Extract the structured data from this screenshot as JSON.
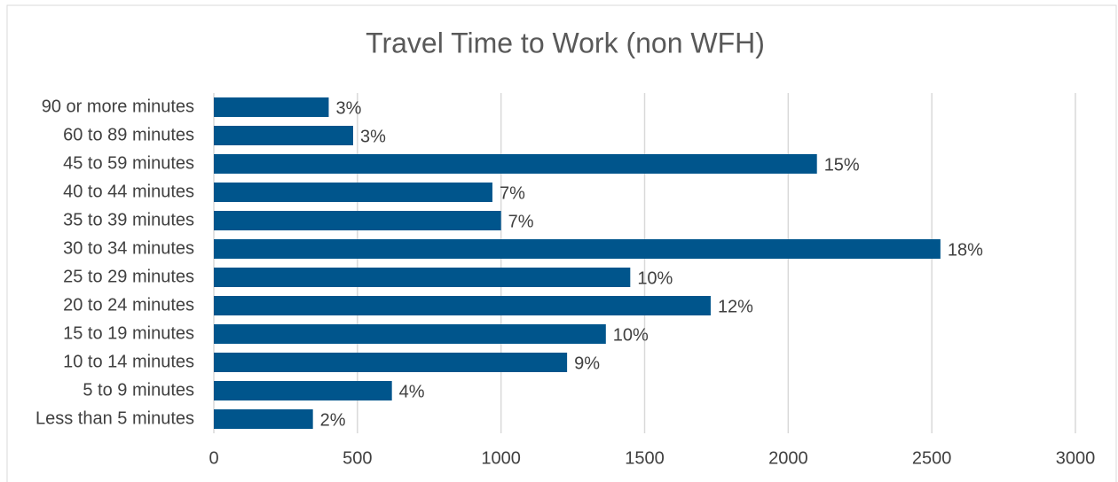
{
  "chart_data": {
    "type": "bar",
    "orientation": "horizontal",
    "title": "Travel Time to Work (non WFH)",
    "categories": [
      "90 or more minutes",
      "60 to 89 minutes",
      "45 to 59 minutes",
      "40 to 44 minutes",
      "35 to 39 minutes",
      "30 to 34 minutes",
      "25 to 29 minutes",
      "20 to 24 minutes",
      "15 to 19 minutes",
      "10 to 14 minutes",
      "5 to 9 minutes",
      "Less than 5 minutes"
    ],
    "values": [
      400,
      485,
      2100,
      970,
      1000,
      2530,
      1450,
      1730,
      1365,
      1230,
      620,
      345
    ],
    "value_labels": [
      "3%",
      "3%",
      "15%",
      "7%",
      "7%",
      "18%",
      "10%",
      "12%",
      "10%",
      "9%",
      "4%",
      "2%"
    ],
    "color": "#00558c",
    "xlim": [
      0,
      3000
    ],
    "xticks": [
      0,
      500,
      1000,
      1500,
      2000,
      2500,
      3000
    ],
    "grid": true
  }
}
